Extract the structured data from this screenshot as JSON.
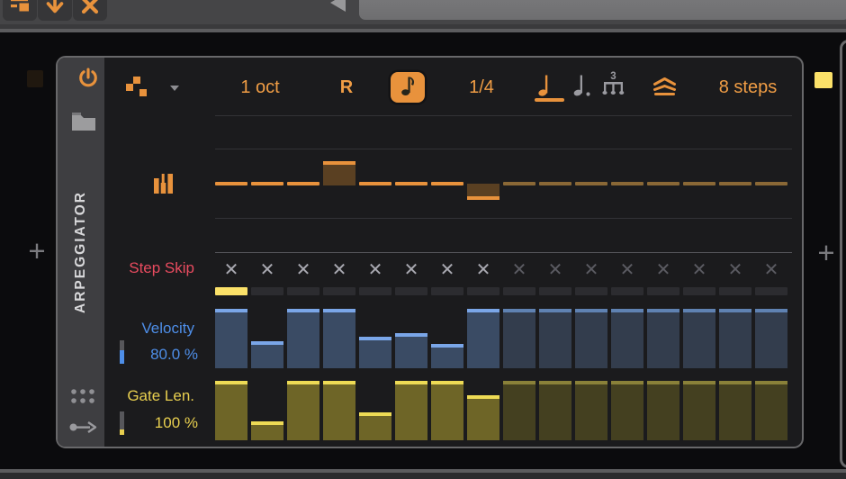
{
  "toolbar": {
    "field_value": ""
  },
  "chain": {
    "add_left_label": "+",
    "add_right_label": "+"
  },
  "device": {
    "title": "ARPEGGIATOR",
    "enabled": true,
    "header": {
      "octave_range": "1 oct",
      "retrigger_label": "R",
      "rate_value": "1/4",
      "steps_label": "8 steps"
    },
    "total_steps": 16,
    "active_steps": 8,
    "current_step": 1,
    "lanes": {
      "pitch": {
        "steps": [
          0,
          0,
          0,
          0.71,
          0,
          0,
          0,
          -0.47,
          0,
          0,
          0,
          0,
          0,
          0,
          0,
          0
        ]
      },
      "step_skip": {
        "label": "Step Skip",
        "glyph": "✕",
        "steps": [
          1,
          1,
          1,
          1,
          1,
          1,
          1,
          1,
          1,
          1,
          1,
          1,
          1,
          1,
          1,
          1
        ]
      },
      "velocity": {
        "label": "Velocity",
        "value": "80.0 %",
        "steps": [
          1,
          0.45,
          1,
          1,
          0.53,
          0.59,
          0.41,
          1,
          1,
          1,
          1,
          1,
          1,
          1,
          1,
          1
        ]
      },
      "gate": {
        "label": "Gate Len.",
        "value": "100 %",
        "steps": [
          1,
          0.32,
          1,
          1,
          0.47,
          1,
          1,
          0.76,
          1,
          1,
          1,
          1,
          1,
          1,
          1,
          1
        ]
      }
    }
  },
  "colors": {
    "orange": "#e8923c",
    "orange_text": "#f09d45",
    "orange_dim": "#8a6836",
    "pitch_block": "#5a4022",
    "red_label": "#e84b5f",
    "x_bright": "#a8a8b0",
    "x_dim": "#5a5a61",
    "position_yellow": "#fbe169",
    "position_slot": "#2c2c30",
    "blue_label": "#4e8ee8",
    "vel_bar": "#3a4b64",
    "vel_cap": "#7aa6e8",
    "vel_bar_dim": "#333d4d",
    "vel_cap_dim": "#5f82b2",
    "yellow_label": "#e8cf4f",
    "gate_bar": "#6e6527",
    "gate_cap": "#eedb55",
    "gate_bar_dim": "#444020",
    "gate_cap_dim": "#8a8139"
  }
}
